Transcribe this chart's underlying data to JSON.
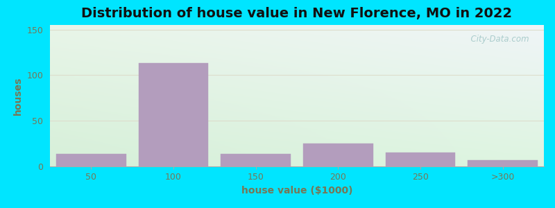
{
  "title": "Distribution of house value in New Florence, MO in 2022",
  "xlabel": "house value ($1000)",
  "ylabel": "houses",
  "bar_labels": [
    "50",
    "100",
    "150",
    "200",
    "250",
    ">300"
  ],
  "bar_values": [
    14,
    113,
    14,
    25,
    15,
    7
  ],
  "bar_color": "#b39dbd",
  "bar_edge_color": "#b39dbd",
  "ylim": [
    0,
    155
  ],
  "yticks": [
    0,
    50,
    100,
    150
  ],
  "background_outer": "#00e5ff",
  "background_inner_top_left": "#e8f5e0",
  "background_inner_top_right": "#f0f4f8",
  "background_inner_bottom": "#d4edda",
  "title_fontsize": 14,
  "axis_label_fontsize": 10,
  "tick_fontsize": 9,
  "tick_color": "#777755",
  "label_color": "#777755",
  "title_color": "#111111",
  "watermark": "  City-Data.com",
  "watermark_color": "#aacccc",
  "grid_color": "#ddddcc",
  "figsize": [
    8.0,
    3.0
  ],
  "dpi": 100
}
